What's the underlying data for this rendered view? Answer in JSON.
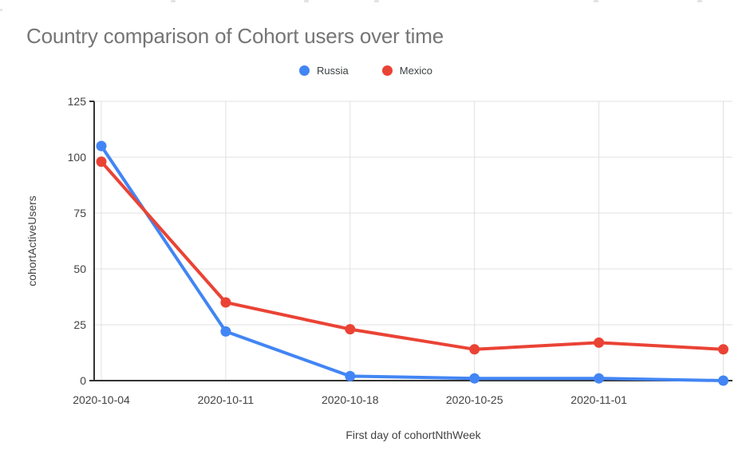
{
  "page": {
    "background": "#ffffff"
  },
  "chart_data": {
    "type": "line",
    "title": "Country comparison of Cohort users over time",
    "xlabel": "First day of cohortNthWeek",
    "ylabel": "cohortActiveUsers",
    "categories": [
      "2020-10-04",
      "2020-10-11",
      "2020-10-18",
      "2020-10-25",
      "2020-11-01",
      ""
    ],
    "series": [
      {
        "name": "Russia",
        "color": "#4285F4",
        "values": [
          105,
          22,
          2,
          1,
          1,
          0
        ]
      },
      {
        "name": "Mexico",
        "color": "#EA4335",
        "values": [
          98,
          35,
          23,
          14,
          17,
          14
        ]
      }
    ],
    "ylim": [
      0,
      125
    ],
    "yticks": [
      0,
      25,
      50,
      75,
      100,
      125
    ],
    "grid": true,
    "legend_position": "top",
    "marker_radius": 6.5,
    "line_width": 4,
    "colors": {
      "title": "#757575",
      "tick_label": "#424242",
      "axis_line": "#333333",
      "gridline": "#e0e0e0",
      "legend_label": "#3c4043",
      "background": "#ffffff"
    }
  }
}
